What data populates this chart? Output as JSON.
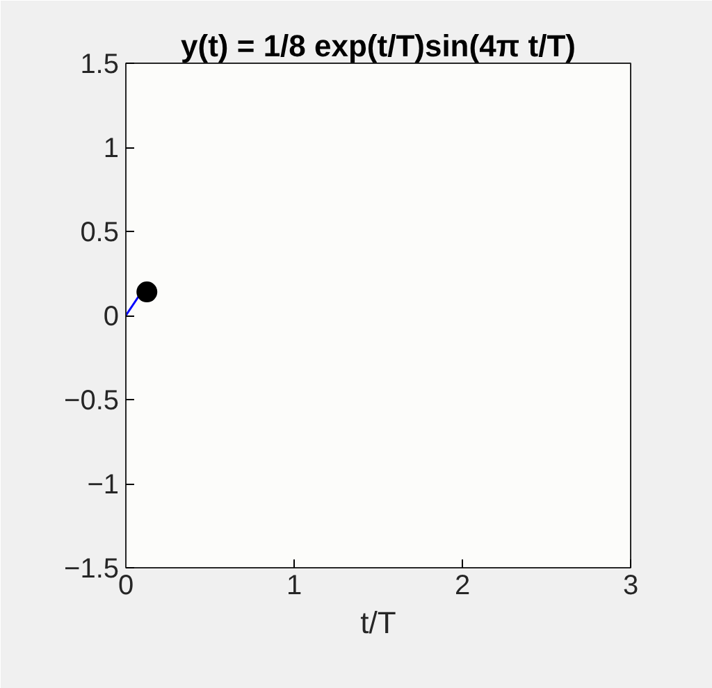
{
  "chart_data": {
    "type": "line",
    "title": "y(t) = 1/8 exp(t/T)sin(4π t/T)",
    "xlabel": "t/T",
    "xlim": [
      0,
      3
    ],
    "xticks": [
      0,
      1,
      2,
      3
    ],
    "ylim": [
      -1.5,
      1.5
    ],
    "yticks": [
      -1.5,
      -1,
      -0.5,
      0,
      0.5,
      1,
      1.5
    ],
    "grid": false,
    "series": [
      {
        "color": "#0000ff",
        "x": [
          0,
          0.04,
          0.08,
          0.125
        ],
        "values": [
          0,
          0.06,
          0.12,
          0.14
        ],
        "marker": "none"
      },
      {
        "type": "scatter",
        "color": "#000000",
        "x": [
          0.125
        ],
        "values": [
          0.14
        ],
        "marker": "circle"
      }
    ]
  }
}
